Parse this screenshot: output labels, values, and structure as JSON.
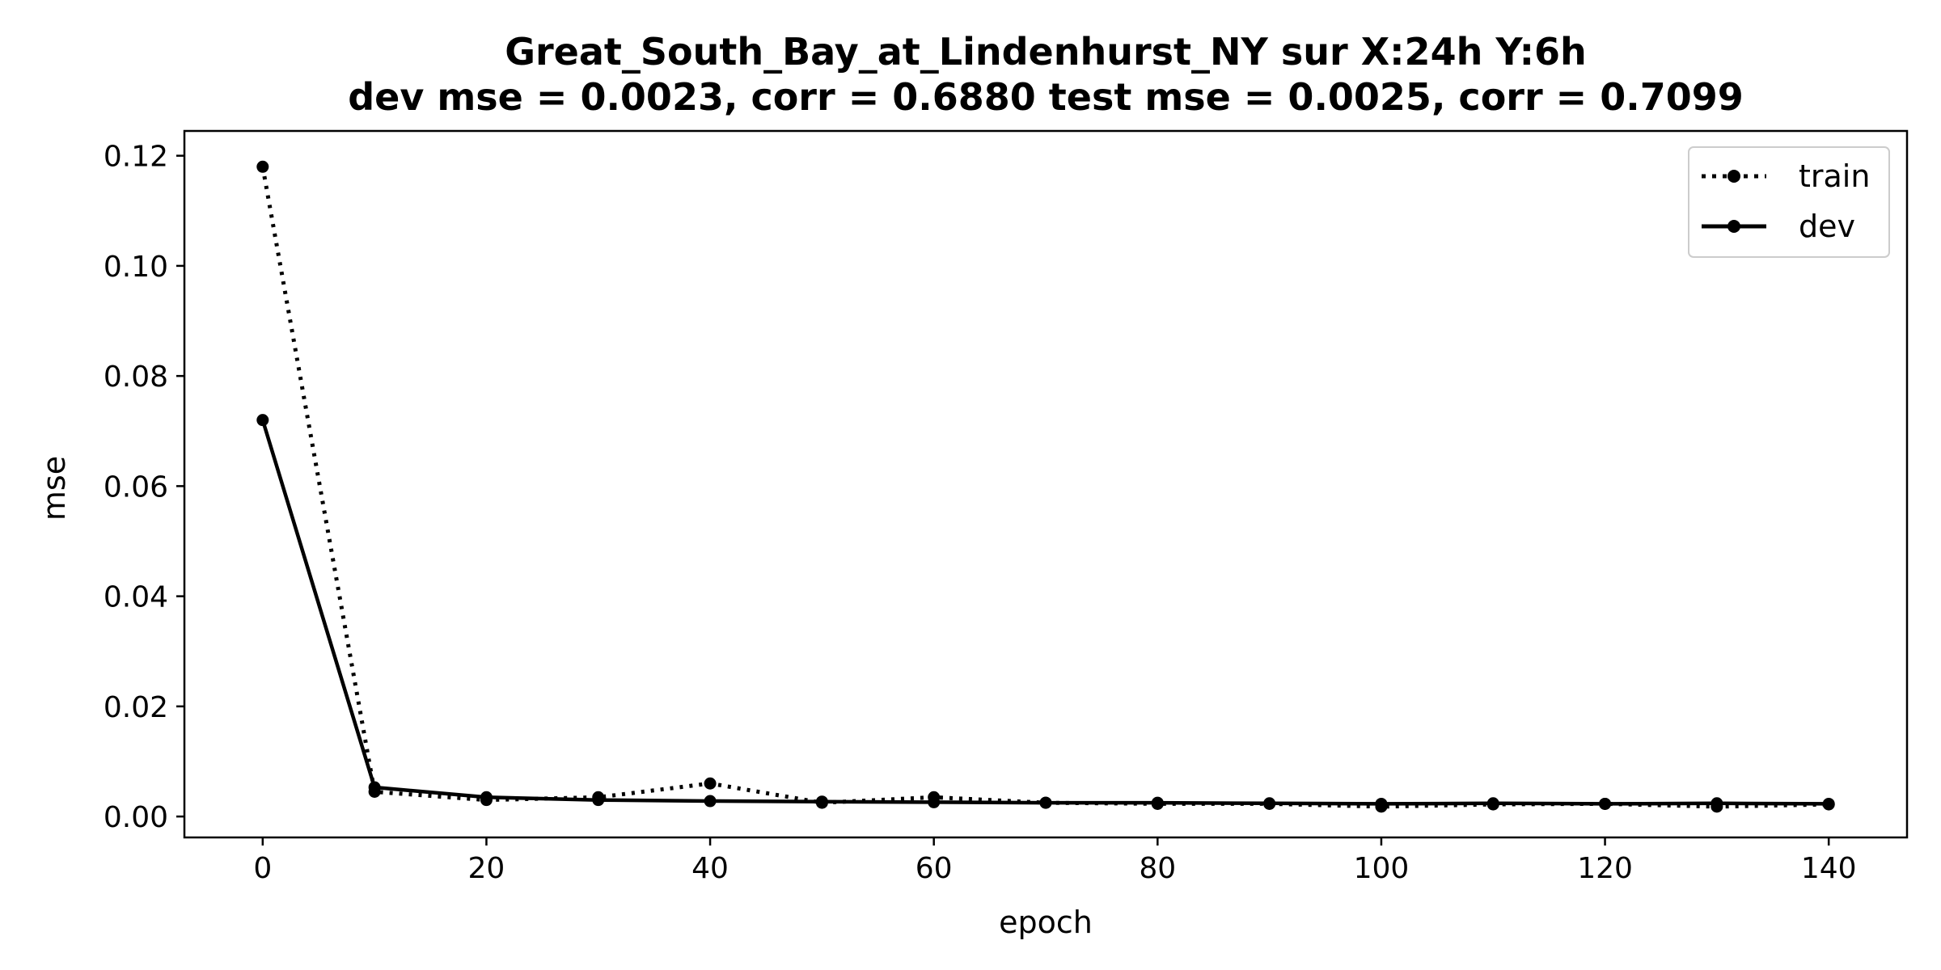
{
  "chart_data": {
    "type": "line",
    "title_line1": "Great_South_Bay_at_Lindenhurst_NY   sur   X:24h   Y:6h",
    "title_line2": "dev mse = 0.0023, corr = 0.6880   test mse = 0.0025, corr = 0.7099",
    "xlabel": "epoch",
    "ylabel": "mse",
    "xlim": [
      -7,
      147
    ],
    "ylim": [
      -0.0038,
      0.1245
    ],
    "xticks": [
      0,
      20,
      40,
      60,
      80,
      100,
      120,
      140
    ],
    "yticks": [
      0.0,
      0.02,
      0.04,
      0.06,
      0.08,
      0.1,
      0.12
    ],
    "ytick_labels": [
      "0.00",
      "0.02",
      "0.04",
      "0.06",
      "0.08",
      "0.10",
      "0.12"
    ],
    "grid": false,
    "legend_position": "top-right",
    "x": [
      0,
      10,
      20,
      30,
      40,
      50,
      60,
      70,
      80,
      90,
      100,
      110,
      120,
      130,
      140
    ],
    "series": [
      {
        "name": "train",
        "style": "dotted",
        "color": "#000000",
        "values": [
          0.118,
          0.0045,
          0.003,
          0.0035,
          0.006,
          0.0025,
          0.0035,
          0.0025,
          0.0023,
          0.0023,
          0.0018,
          0.0022,
          0.0023,
          0.0018,
          0.0022
        ]
      },
      {
        "name": "dev",
        "style": "solid",
        "color": "#000000",
        "values": [
          0.072,
          0.0053,
          0.0035,
          0.003,
          0.0028,
          0.0027,
          0.0026,
          0.0025,
          0.0025,
          0.0024,
          0.0023,
          0.0024,
          0.0023,
          0.0024,
          0.0023
        ]
      }
    ]
  }
}
